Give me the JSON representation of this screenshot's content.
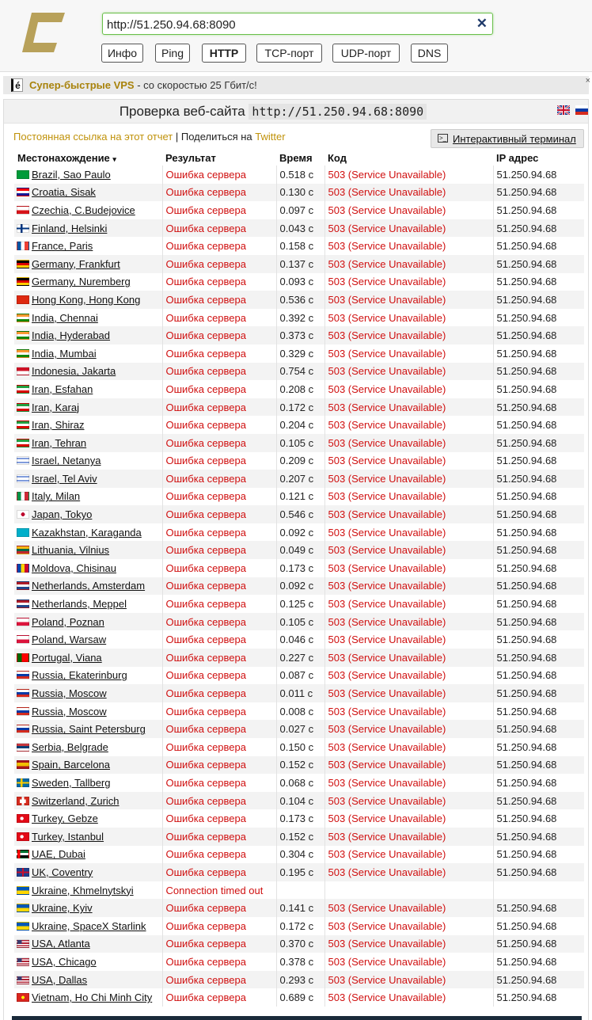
{
  "header": {
    "logo": "check-host-logo",
    "url_value": "http://51.250.94.68:8090",
    "clear_icon": "close-icon",
    "modes": [
      {
        "label": "Инфо",
        "active": false
      },
      {
        "label": "Ping",
        "active": false
      },
      {
        "label": "HTTP",
        "active": true
      },
      {
        "label": "TCP-порт",
        "active": false
      },
      {
        "label": "UDP-порт",
        "active": false
      },
      {
        "label": "DNS",
        "active": false
      }
    ]
  },
  "ad": {
    "icon_letter": "é",
    "link": "Супер-быстрые VPS",
    "text": " - со скоростью 25 Гбит/с!",
    "close": "×"
  },
  "report": {
    "title_prefix": "Проверка веб-сайта",
    "title_host": "http://51.250.94.68:8090",
    "languages": [
      "en",
      "ru"
    ],
    "permalink": "Постоянная ссылка на этот отчет",
    "share_prefix": " | Поделиться на ",
    "share_link": "Twitter",
    "terminal_button": "Интерактивный терминал",
    "columns": {
      "location": "Местонахождение",
      "location_sort": "▾",
      "result": "Результат",
      "time": "Время",
      "code": "Код",
      "ip": "IP адрес"
    }
  },
  "colors": {
    "accent_gold": "#c0920a",
    "error_red": "#d01010",
    "input_green": "#6abf4a"
  },
  "rows": [
    {
      "flag": "br",
      "location": "Brazil, Sao Paulo",
      "result": "Ошибка сервера",
      "time": "0.518 с",
      "code": "503 (Service Unavailable)",
      "ip": "51.250.94.68"
    },
    {
      "flag": "hr",
      "location": "Croatia, Sisak",
      "result": "Ошибка сервера",
      "time": "0.130 с",
      "code": "503 (Service Unavailable)",
      "ip": "51.250.94.68"
    },
    {
      "flag": "cz",
      "location": "Czechia, C.Budejovice",
      "result": "Ошибка сервера",
      "time": "0.097 с",
      "code": "503 (Service Unavailable)",
      "ip": "51.250.94.68"
    },
    {
      "flag": "fi",
      "location": "Finland, Helsinki",
      "result": "Ошибка сервера",
      "time": "0.043 с",
      "code": "503 (Service Unavailable)",
      "ip": "51.250.94.68"
    },
    {
      "flag": "fr",
      "location": "France, Paris",
      "result": "Ошибка сервера",
      "time": "0.158 с",
      "code": "503 (Service Unavailable)",
      "ip": "51.250.94.68"
    },
    {
      "flag": "de",
      "location": "Germany, Frankfurt",
      "result": "Ошибка сервера",
      "time": "0.137 с",
      "code": "503 (Service Unavailable)",
      "ip": "51.250.94.68"
    },
    {
      "flag": "de",
      "location": "Germany, Nuremberg",
      "result": "Ошибка сервера",
      "time": "0.093 с",
      "code": "503 (Service Unavailable)",
      "ip": "51.250.94.68"
    },
    {
      "flag": "hk",
      "location": "Hong Kong, Hong Kong",
      "result": "Ошибка сервера",
      "time": "0.536 с",
      "code": "503 (Service Unavailable)",
      "ip": "51.250.94.68"
    },
    {
      "flag": "in",
      "location": "India, Chennai",
      "result": "Ошибка сервера",
      "time": "0.392 с",
      "code": "503 (Service Unavailable)",
      "ip": "51.250.94.68"
    },
    {
      "flag": "in",
      "location": "India, Hyderabad",
      "result": "Ошибка сервера",
      "time": "0.373 с",
      "code": "503 (Service Unavailable)",
      "ip": "51.250.94.68"
    },
    {
      "flag": "in",
      "location": "India, Mumbai",
      "result": "Ошибка сервера",
      "time": "0.329 с",
      "code": "503 (Service Unavailable)",
      "ip": "51.250.94.68"
    },
    {
      "flag": "id",
      "location": "Indonesia, Jakarta",
      "result": "Ошибка сервера",
      "time": "0.754 с",
      "code": "503 (Service Unavailable)",
      "ip": "51.250.94.68"
    },
    {
      "flag": "ir",
      "location": "Iran, Esfahan",
      "result": "Ошибка сервера",
      "time": "0.208 с",
      "code": "503 (Service Unavailable)",
      "ip": "51.250.94.68"
    },
    {
      "flag": "ir",
      "location": "Iran, Karaj",
      "result": "Ошибка сервера",
      "time": "0.172 с",
      "code": "503 (Service Unavailable)",
      "ip": "51.250.94.68"
    },
    {
      "flag": "ir",
      "location": "Iran, Shiraz",
      "result": "Ошибка сервера",
      "time": "0.204 с",
      "code": "503 (Service Unavailable)",
      "ip": "51.250.94.68"
    },
    {
      "flag": "ir",
      "location": "Iran, Tehran",
      "result": "Ошибка сервера",
      "time": "0.105 с",
      "code": "503 (Service Unavailable)",
      "ip": "51.250.94.68"
    },
    {
      "flag": "il",
      "location": "Israel, Netanya",
      "result": "Ошибка сервера",
      "time": "0.209 с",
      "code": "503 (Service Unavailable)",
      "ip": "51.250.94.68"
    },
    {
      "flag": "il",
      "location": "Israel, Tel Aviv",
      "result": "Ошибка сервера",
      "time": "0.207 с",
      "code": "503 (Service Unavailable)",
      "ip": "51.250.94.68"
    },
    {
      "flag": "it",
      "location": "Italy, Milan",
      "result": "Ошибка сервера",
      "time": "0.121 с",
      "code": "503 (Service Unavailable)",
      "ip": "51.250.94.68"
    },
    {
      "flag": "jp",
      "location": "Japan, Tokyo",
      "result": "Ошибка сервера",
      "time": "0.546 с",
      "code": "503 (Service Unavailable)",
      "ip": "51.250.94.68"
    },
    {
      "flag": "kz",
      "location": "Kazakhstan, Karaganda",
      "result": "Ошибка сервера",
      "time": "0.092 с",
      "code": "503 (Service Unavailable)",
      "ip": "51.250.94.68"
    },
    {
      "flag": "lt",
      "location": "Lithuania, Vilnius",
      "result": "Ошибка сервера",
      "time": "0.049 с",
      "code": "503 (Service Unavailable)",
      "ip": "51.250.94.68"
    },
    {
      "flag": "md",
      "location": "Moldova, Chisinau",
      "result": "Ошибка сервера",
      "time": "0.173 с",
      "code": "503 (Service Unavailable)",
      "ip": "51.250.94.68"
    },
    {
      "flag": "nl",
      "location": "Netherlands, Amsterdam",
      "result": "Ошибка сервера",
      "time": "0.092 с",
      "code": "503 (Service Unavailable)",
      "ip": "51.250.94.68"
    },
    {
      "flag": "nl",
      "location": "Netherlands, Meppel",
      "result": "Ошибка сервера",
      "time": "0.125 с",
      "code": "503 (Service Unavailable)",
      "ip": "51.250.94.68"
    },
    {
      "flag": "pl",
      "location": "Poland, Poznan",
      "result": "Ошибка сервера",
      "time": "0.105 с",
      "code": "503 (Service Unavailable)",
      "ip": "51.250.94.68"
    },
    {
      "flag": "pl",
      "location": "Poland, Warsaw",
      "result": "Ошибка сервера",
      "time": "0.046 с",
      "code": "503 (Service Unavailable)",
      "ip": "51.250.94.68"
    },
    {
      "flag": "pt",
      "location": "Portugal, Viana",
      "result": "Ошибка сервера",
      "time": "0.227 с",
      "code": "503 (Service Unavailable)",
      "ip": "51.250.94.68"
    },
    {
      "flag": "ru",
      "location": "Russia, Ekaterinburg",
      "result": "Ошибка сервера",
      "time": "0.087 с",
      "code": "503 (Service Unavailable)",
      "ip": "51.250.94.68"
    },
    {
      "flag": "ru",
      "location": "Russia, Moscow",
      "result": "Ошибка сервера",
      "time": "0.011 с",
      "code": "503 (Service Unavailable)",
      "ip": "51.250.94.68"
    },
    {
      "flag": "ru",
      "location": "Russia, Moscow",
      "result": "Ошибка сервера",
      "time": "0.008 с",
      "code": "503 (Service Unavailable)",
      "ip": "51.250.94.68"
    },
    {
      "flag": "ru",
      "location": "Russia, Saint Petersburg",
      "result": "Ошибка сервера",
      "time": "0.027 с",
      "code": "503 (Service Unavailable)",
      "ip": "51.250.94.68"
    },
    {
      "flag": "rs",
      "location": "Serbia, Belgrade",
      "result": "Ошибка сервера",
      "time": "0.150 с",
      "code": "503 (Service Unavailable)",
      "ip": "51.250.94.68"
    },
    {
      "flag": "es",
      "location": "Spain, Barcelona",
      "result": "Ошибка сервера",
      "time": "0.152 с",
      "code": "503 (Service Unavailable)",
      "ip": "51.250.94.68"
    },
    {
      "flag": "se",
      "location": "Sweden, Tallberg",
      "result": "Ошибка сервера",
      "time": "0.068 с",
      "code": "503 (Service Unavailable)",
      "ip": "51.250.94.68"
    },
    {
      "flag": "ch",
      "location": "Switzerland, Zurich",
      "result": "Ошибка сервера",
      "time": "0.104 с",
      "code": "503 (Service Unavailable)",
      "ip": "51.250.94.68"
    },
    {
      "flag": "tr",
      "location": "Turkey, Gebze",
      "result": "Ошибка сервера",
      "time": "0.173 с",
      "code": "503 (Service Unavailable)",
      "ip": "51.250.94.68"
    },
    {
      "flag": "tr",
      "location": "Turkey, Istanbul",
      "result": "Ошибка сервера",
      "time": "0.152 с",
      "code": "503 (Service Unavailable)",
      "ip": "51.250.94.68"
    },
    {
      "flag": "ae",
      "location": "UAE, Dubai",
      "result": "Ошибка сервера",
      "time": "0.304 с",
      "code": "503 (Service Unavailable)",
      "ip": "51.250.94.68"
    },
    {
      "flag": "gb",
      "location": "UK, Coventry",
      "result": "Ошибка сервера",
      "time": "0.195 с",
      "code": "503 (Service Unavailable)",
      "ip": "51.250.94.68"
    },
    {
      "flag": "ua",
      "location": "Ukraine, Khmelnytskyi",
      "result": "Connection timed out",
      "time": "",
      "code": "",
      "ip": ""
    },
    {
      "flag": "ua",
      "location": "Ukraine, Kyiv",
      "result": "Ошибка сервера",
      "time": "0.141 с",
      "code": "503 (Service Unavailable)",
      "ip": "51.250.94.68"
    },
    {
      "flag": "ua",
      "location": "Ukraine, SpaceX Starlink",
      "result": "Ошибка сервера",
      "time": "0.172 с",
      "code": "503 (Service Unavailable)",
      "ip": "51.250.94.68"
    },
    {
      "flag": "us",
      "location": "USA, Atlanta",
      "result": "Ошибка сервера",
      "time": "0.370 с",
      "code": "503 (Service Unavailable)",
      "ip": "51.250.94.68"
    },
    {
      "flag": "us",
      "location": "USA, Chicago",
      "result": "Ошибка сервера",
      "time": "0.378 с",
      "code": "503 (Service Unavailable)",
      "ip": "51.250.94.68"
    },
    {
      "flag": "us",
      "location": "USA, Dallas",
      "result": "Ошибка сервера",
      "time": "0.293 с",
      "code": "503 (Service Unavailable)",
      "ip": "51.250.94.68"
    },
    {
      "flag": "vn",
      "location": "Vietnam, Ho Chi Minh City",
      "result": "Ошибка сервера",
      "time": "0.689 с",
      "code": "503 (Service Unavailable)",
      "ip": "51.250.94.68"
    }
  ]
}
